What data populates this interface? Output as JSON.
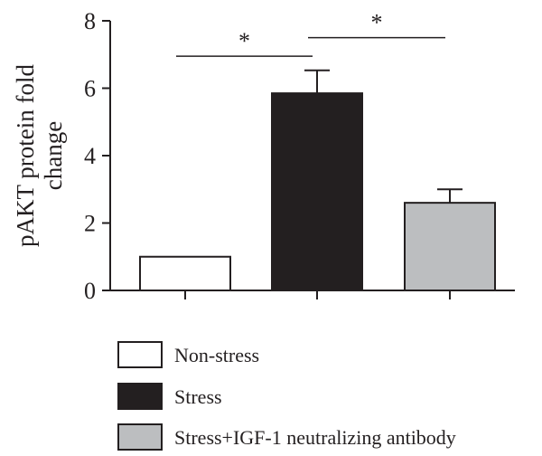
{
  "chart_data": {
    "type": "bar",
    "title": "",
    "xlabel": "",
    "ylabel_lines": [
      "pAKT protein fold",
      "change"
    ],
    "ylim": [
      0,
      8
    ],
    "yticks": [
      0,
      2,
      4,
      6,
      8
    ],
    "categories": [
      "Non-stress",
      "Stress",
      "Stress+IGF-1 neutralizing antibody"
    ],
    "values": [
      1.0,
      5.85,
      2.6
    ],
    "errors": [
      0,
      0.68,
      0.4
    ],
    "colors": [
      "#ffffff",
      "#231f20",
      "#bcbec0"
    ],
    "legend_position": "bottom",
    "significance": [
      {
        "from": 0,
        "to": 1,
        "y": 6.95,
        "label": "*"
      },
      {
        "from": 1,
        "to": 2,
        "y": 7.5,
        "label": "*"
      }
    ]
  }
}
